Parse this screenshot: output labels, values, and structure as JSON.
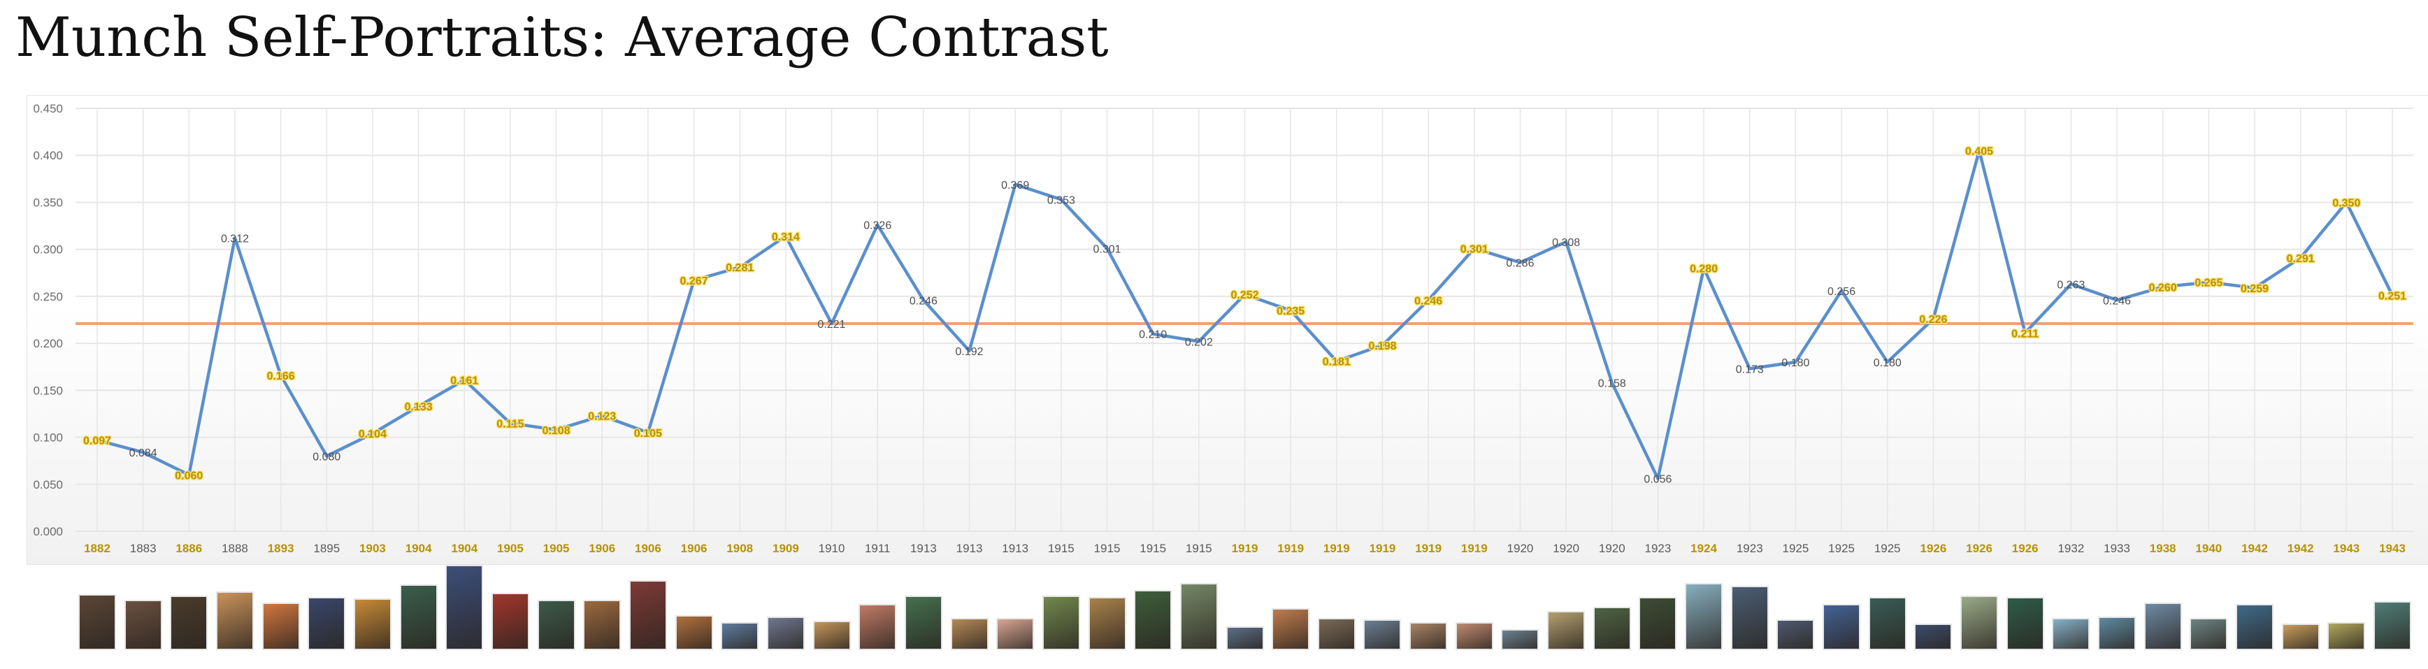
{
  "chart_data": {
    "type": "line",
    "title": "Munch Self-Portraits: Average Contrast",
    "ylim": [
      0,
      0.45
    ],
    "yticks": [
      "0.000",
      "0.050",
      "0.100",
      "0.150",
      "0.200",
      "0.250",
      "0.300",
      "0.350",
      "0.400",
      "0.450"
    ],
    "grid": true,
    "categories": [
      "1882",
      "1883",
      "1886",
      "1888",
      "1893",
      "1895",
      "1903",
      "1904",
      "1904",
      "1905",
      "1905",
      "1906",
      "1906",
      "1906",
      "1908",
      "1909",
      "1910",
      "1911",
      "1913",
      "1913",
      "1913",
      "1915",
      "1915",
      "1915",
      "1915",
      "1919",
      "1919",
      "1919",
      "1919",
      "1919",
      "1919",
      "1920",
      "1920",
      "1920",
      "1923",
      "1924",
      "1923",
      "1925",
      "1925",
      "1925",
      "1926",
      "1926",
      "1926",
      "1932",
      "1933",
      "1938",
      "1940",
      "1942",
      "1942",
      "1943",
      "1943"
    ],
    "values": [
      0.097,
      0.084,
      0.06,
      0.312,
      0.166,
      0.08,
      0.104,
      0.133,
      0.161,
      0.115,
      0.108,
      0.123,
      0.105,
      0.267,
      0.281,
      0.314,
      0.221,
      0.326,
      0.246,
      0.192,
      0.369,
      0.353,
      0.301,
      0.21,
      0.202,
      0.252,
      0.235,
      0.181,
      0.198,
      0.246,
      0.301,
      0.286,
      0.308,
      0.158,
      0.056,
      0.28,
      0.173,
      0.18,
      0.256,
      0.18,
      0.226,
      0.405,
      0.211,
      0.263,
      0.246,
      0.26,
      0.265,
      0.259,
      0.291,
      0.35,
      0.251
    ],
    "value_labels": [
      "0.097",
      "0.084",
      "0.060",
      "0.312",
      "0.166",
      "0.080",
      "0.104",
      "0.133",
      "0.161",
      "0.115",
      "0.108",
      "0.123",
      "0.105",
      "0.267",
      "0.281",
      "0.314",
      "0.221",
      "0.326",
      "0.246",
      "0.192",
      "0.369",
      "0.353",
      "0.301",
      "0.210",
      "0.202",
      "0.252",
      "0.235",
      "0.181",
      "0.198",
      "0.246",
      "0.301",
      "0.286",
      "0.308",
      "0.158",
      "0.056",
      "0.280",
      "0.173",
      "0.180",
      "0.256",
      "0.180",
      "0.226",
      "0.405",
      "0.211",
      "0.263",
      "0.246",
      "0.260",
      "0.265",
      "0.259",
      "0.291",
      "0.350",
      "0.251"
    ],
    "highlighted": [
      true,
      false,
      true,
      false,
      true,
      false,
      true,
      true,
      true,
      true,
      true,
      true,
      true,
      true,
      true,
      true,
      false,
      false,
      false,
      false,
      false,
      false,
      false,
      false,
      false,
      true,
      true,
      true,
      true,
      true,
      true,
      false,
      false,
      false,
      false,
      true,
      false,
      false,
      false,
      false,
      true,
      true,
      true,
      false,
      false,
      true,
      true,
      true,
      true,
      true,
      true
    ],
    "reference_line": 0.221,
    "colors": {
      "line": "#5b8fcc",
      "reference": "#f0a070",
      "highlight_text": "#b89200",
      "normal_text": "#4e4e4e",
      "label_halo": "#fbe27a",
      "grid": "#e6e6e6"
    }
  },
  "thumbnails": [
    {
      "w": 54,
      "h": 80,
      "c": "#5a4636"
    },
    {
      "w": 54,
      "h": 72,
      "c": "#6b5040"
    },
    {
      "w": 54,
      "h": 78,
      "c": "#4a3c2c"
    },
    {
      "w": 54,
      "h": 84,
      "c": "#c9935a"
    },
    {
      "w": 54,
      "h": 68,
      "c": "#d1763e"
    },
    {
      "w": 54,
      "h": 76,
      "c": "#38476a"
    },
    {
      "w": 54,
      "h": 74,
      "c": "#c68a36"
    },
    {
      "w": 54,
      "h": 94,
      "c": "#3a5e4c"
    },
    {
      "w": 54,
      "h": 122,
      "c": "#3c4f7a"
    },
    {
      "w": 54,
      "h": 82,
      "c": "#a2362e"
    },
    {
      "w": 54,
      "h": 72,
      "c": "#3d5a49"
    },
    {
      "w": 54,
      "h": 72,
      "c": "#9b6a3e"
    },
    {
      "w": 54,
      "h": 100,
      "c": "#7d3a36"
    },
    {
      "w": 54,
      "h": 50,
      "c": "#b0703c"
    },
    {
      "w": 54,
      "h": 40,
      "c": "#5e7c9e"
    },
    {
      "w": 54,
      "h": 48,
      "c": "#6e7890"
    },
    {
      "w": 54,
      "h": 42,
      "c": "#c4955a"
    },
    {
      "w": 54,
      "h": 66,
      "c": "#c07a66"
    },
    {
      "w": 54,
      "h": 78,
      "c": "#44704e"
    },
    {
      "w": 54,
      "h": 46,
      "c": "#b58a56"
    },
    {
      "w": 54,
      "h": 46,
      "c": "#d9a694"
    },
    {
      "w": 54,
      "h": 78,
      "c": "#71884e"
    },
    {
      "w": 54,
      "h": 76,
      "c": "#a8824a"
    },
    {
      "w": 54,
      "h": 86,
      "c": "#3e5e3c"
    },
    {
      "w": 54,
      "h": 96,
      "c": "#748866"
    },
    {
      "w": 54,
      "h": 34,
      "c": "#5a6e86"
    },
    {
      "w": 54,
      "h": 60,
      "c": "#c07c4c"
    },
    {
      "w": 54,
      "h": 46,
      "c": "#7a6a58"
    },
    {
      "w": 54,
      "h": 44,
      "c": "#6b7f92"
    },
    {
      "w": 54,
      "h": 40,
      "c": "#a88466"
    },
    {
      "w": 54,
      "h": 40,
      "c": "#bf8a70"
    },
    {
      "w": 54,
      "h": 30,
      "c": "#6b8290"
    },
    {
      "w": 54,
      "h": 56,
      "c": "#b4a070"
    },
    {
      "w": 54,
      "h": 62,
      "c": "#4e6444"
    },
    {
      "w": 54,
      "h": 76,
      "c": "#3c4c34"
    },
    {
      "w": 54,
      "h": 96,
      "c": "#86aebe"
    },
    {
      "w": 54,
      "h": 92,
      "c": "#4a5e74"
    },
    {
      "w": 54,
      "h": 44,
      "c": "#4e5a6e"
    },
    {
      "w": 54,
      "h": 66,
      "c": "#456294"
    },
    {
      "w": 54,
      "h": 76,
      "c": "#3a5c56"
    },
    {
      "w": 54,
      "h": 38,
      "c": "#3c4c6c"
    },
    {
      "w": 54,
      "h": 78,
      "c": "#9aaa88"
    },
    {
      "w": 54,
      "h": 76,
      "c": "#2e5c4a"
    },
    {
      "w": 54,
      "h": 46,
      "c": "#86b0c8"
    },
    {
      "w": 54,
      "h": 48,
      "c": "#5e8aa0"
    },
    {
      "w": 54,
      "h": 68,
      "c": "#6e8aa2"
    },
    {
      "w": 54,
      "h": 46,
      "c": "#6c8482"
    },
    {
      "w": 54,
      "h": 66,
      "c": "#3f6a8a"
    },
    {
      "w": 54,
      "h": 38,
      "c": "#c89e5c"
    },
    {
      "w": 54,
      "h": 40,
      "c": "#b0a85a"
    },
    {
      "w": 54,
      "h": 70,
      "c": "#4e7e76"
    }
  ]
}
